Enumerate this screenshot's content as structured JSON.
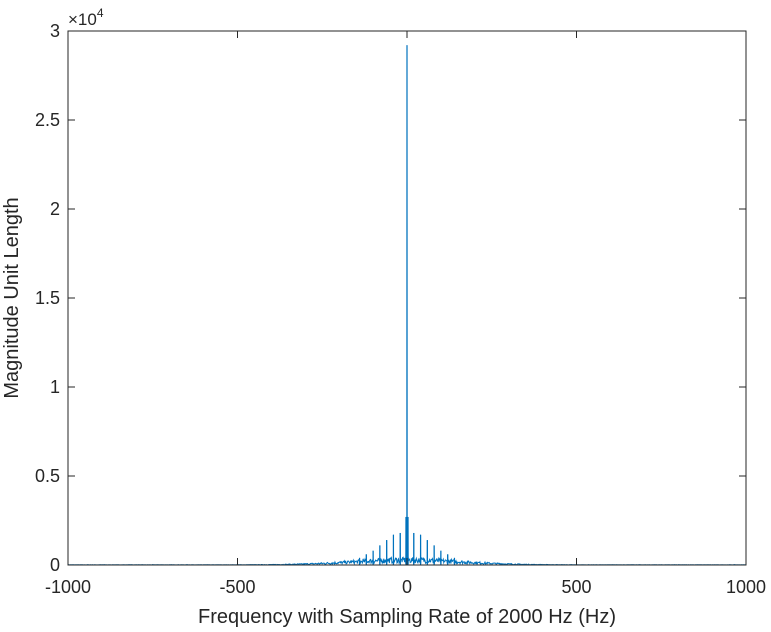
{
  "chart_data": {
    "type": "line",
    "title": "",
    "xlabel": "Frequency with Sampling Rate of 2000 Hz (Hz)",
    "ylabel": "Magnitude Unit Length",
    "xlim": [
      -1000,
      1000
    ],
    "ylim": [
      0,
      30000
    ],
    "x_ticks": [
      -1000,
      -500,
      0,
      500,
      1000
    ],
    "y_ticks": [
      0,
      5000,
      10000,
      15000,
      20000,
      25000,
      30000
    ],
    "x_tick_labels": [
      "-1000",
      "-500",
      "0",
      "500",
      "1000"
    ],
    "y_tick_labels": [
      "0",
      "0.5",
      "1",
      "1.5",
      "2",
      "2.5",
      "3"
    ],
    "y_exponent_label": "×10",
    "y_exponent_power": "4",
    "grid": false,
    "line_color": "#0072BD",
    "peaks": [
      {
        "x": -140,
        "y": 400
      },
      {
        "x": -120,
        "y": 600
      },
      {
        "x": -100,
        "y": 800
      },
      {
        "x": -80,
        "y": 1100
      },
      {
        "x": -60,
        "y": 1400
      },
      {
        "x": -40,
        "y": 1700
      },
      {
        "x": -20,
        "y": 1800
      },
      {
        "x": -3,
        "y": 2700
      },
      {
        "x": 0,
        "y": 29200
      },
      {
        "x": 3,
        "y": 2700
      },
      {
        "x": 20,
        "y": 1800
      },
      {
        "x": 40,
        "y": 1700
      },
      {
        "x": 60,
        "y": 1400
      },
      {
        "x": 80,
        "y": 1100
      },
      {
        "x": 100,
        "y": 800
      },
      {
        "x": 120,
        "y": 600
      },
      {
        "x": 140,
        "y": 400
      }
    ],
    "noise_envelope_peak": 350,
    "noise_envelope_range": [
      -500,
      500
    ]
  }
}
